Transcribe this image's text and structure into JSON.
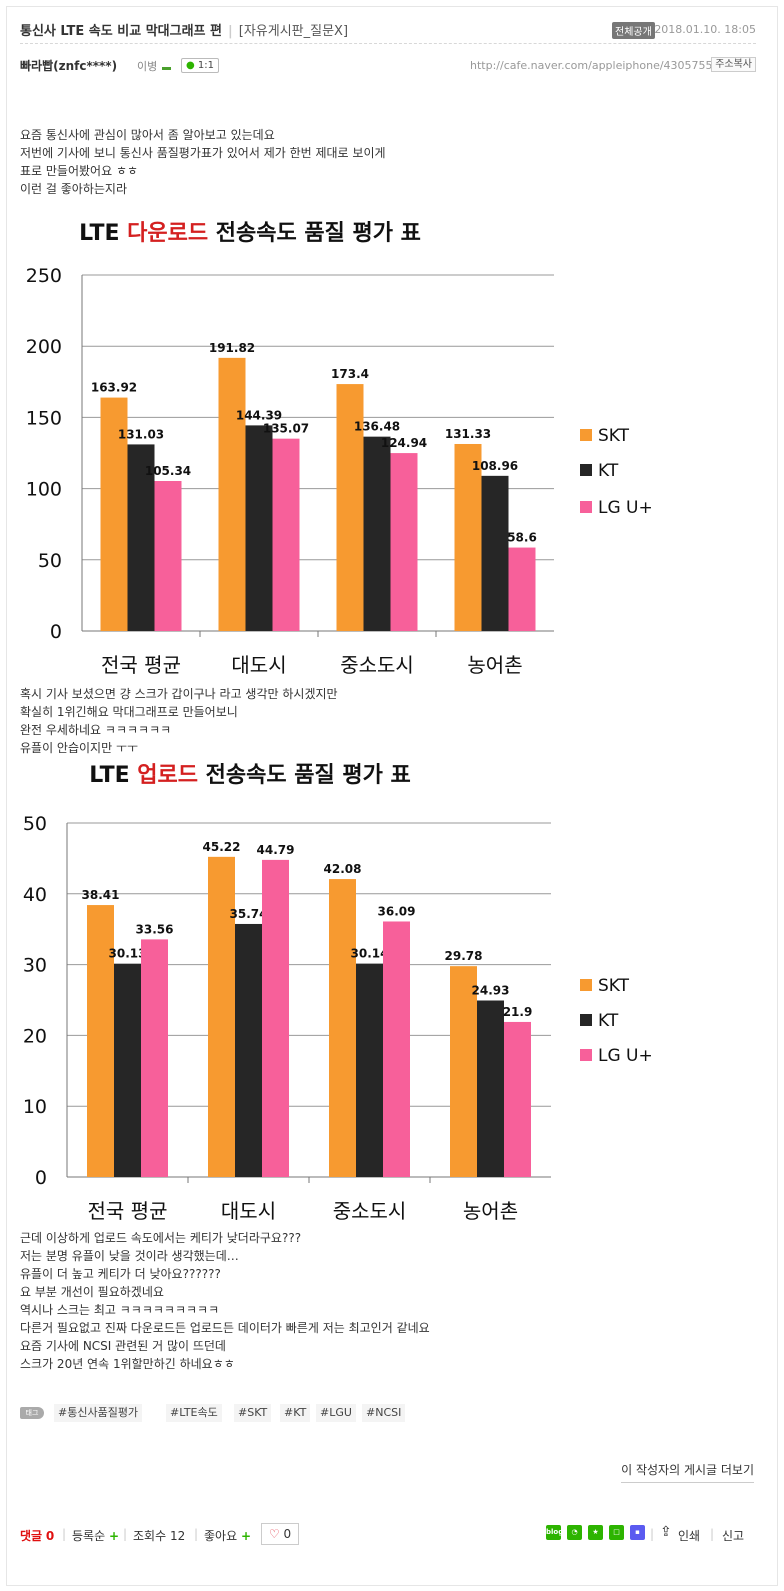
{
  "post": {
    "title": "통신사 LTE 속도 비교 막대그래프 편",
    "board": "[자유게시판_질문X]",
    "visibility_badge": "전체공개",
    "date": "2018.01.10. 18:05",
    "author": "빠라빱(znfc****)",
    "level": "이병",
    "chat_label": "1:1",
    "url": "http://cafe.naver.com/appleiphone/4305755",
    "copy_url_label": "주소복사"
  },
  "paragraphs": [
    [
      "요즘 통신사에 관심이 많아서 좀 알아보고 있는데요",
      "저번에 기사에 보니 통신사 품질평가표가 있어서 제가 한번 제대로 보이게",
      "표로 만들어봤어요 ㅎㅎ",
      "이런 걸 좋아하는지라"
    ],
    [
      "혹시 기사 보셨으면 걍 스크가 갑이구나 라고 생각만 하시겠지만",
      "확실히 1위긴해요 막대그래프로 만들어보니",
      "완전 우세하네요 ㅋㅋㅋㅋㅋㅋ",
      "유플이 안습이지만 ㅜㅜ"
    ],
    [
      "근데 이상하게 업로드 속도에서는 케티가 낮더라구요???",
      "저는 분명 유플이 낮을 것이라 생각했는데…",
      "유플이 더 높고 케티가 더 낮아요??????",
      "요 부분 개선이 필요하겠네요",
      "역시나 스크는 최고 ㅋㅋㅋㅋㅋㅋㅋㅋㅋ",
      "다른거 필요없고 진짜 다운로드든 업로드든 데이터가 빠른게 저는 최고인거 같네요",
      "요즘 기사에 NCSI 관련된 거 많이 뜨던데",
      "스크가 20년 연속 1위할만하긴 하네요ㅎㅎ"
    ]
  ],
  "chart_data": [
    {
      "type": "bar",
      "title_prefix": "LTE ",
      "title_highlight": "다운로드",
      "title_suffix": " 전송속도 품질 평가 표",
      "categories": [
        "전국 평균",
        "대도시",
        "중소도시",
        "농어촌"
      ],
      "series": [
        {
          "name": "SKT",
          "color": "#f79a30",
          "values": [
            163.92,
            191.82,
            173.4,
            131.33
          ]
        },
        {
          "name": "KT",
          "color": "#262626",
          "values": [
            131.03,
            144.39,
            136.48,
            108.96
          ]
        },
        {
          "name": "LG U+",
          "color": "#f7609a",
          "values": [
            105.34,
            135.07,
            124.94,
            58.6
          ]
        }
      ],
      "ylim": [
        0,
        250
      ],
      "yticks": [
        0,
        50,
        100,
        150,
        200,
        250
      ],
      "grid": true,
      "legend": "right"
    },
    {
      "type": "bar",
      "title_prefix": "LTE ",
      "title_highlight": "업로드",
      "title_suffix": " 전송속도 품질 평가 표",
      "categories": [
        "전국 평균",
        "대도시",
        "중소도시",
        "농어촌"
      ],
      "series": [
        {
          "name": "SKT",
          "color": "#f79a30",
          "values": [
            38.41,
            45.22,
            42.08,
            29.78
          ]
        },
        {
          "name": "KT",
          "color": "#262626",
          "values": [
            30.13,
            35.74,
            30.14,
            24.93
          ]
        },
        {
          "name": "LG U+",
          "color": "#f7609a",
          "values": [
            33.56,
            44.79,
            36.09,
            21.9
          ]
        }
      ],
      "ylim": [
        0,
        50
      ],
      "yticks": [
        0,
        10,
        20,
        30,
        40,
        50
      ],
      "grid": true,
      "legend": "right"
    }
  ],
  "tags": {
    "icon_label": "태그",
    "items": [
      "#통신사품질평가",
      "#LTE속도",
      "#SKT",
      "#KT",
      "#LGU",
      "#NCSI"
    ]
  },
  "more_posts_label": "이 작성자의 게시글 더보기",
  "footer": {
    "comment_label": "댓글",
    "comment_count": "0",
    "sort_label": "등록순",
    "views_label": "조회수",
    "views_count": "12",
    "like_label": "좋아요",
    "like_count": "0",
    "print_label": "인쇄",
    "report_label": "신고",
    "share_blog_label": "blog"
  },
  "icons": [
    "speech-bubble-icon",
    "plus-icon",
    "heart-icon",
    "blog-share-icon",
    "chat-share-icon",
    "star-share-icon",
    "square-share-icon",
    "band-share-icon",
    "share-icon"
  ]
}
